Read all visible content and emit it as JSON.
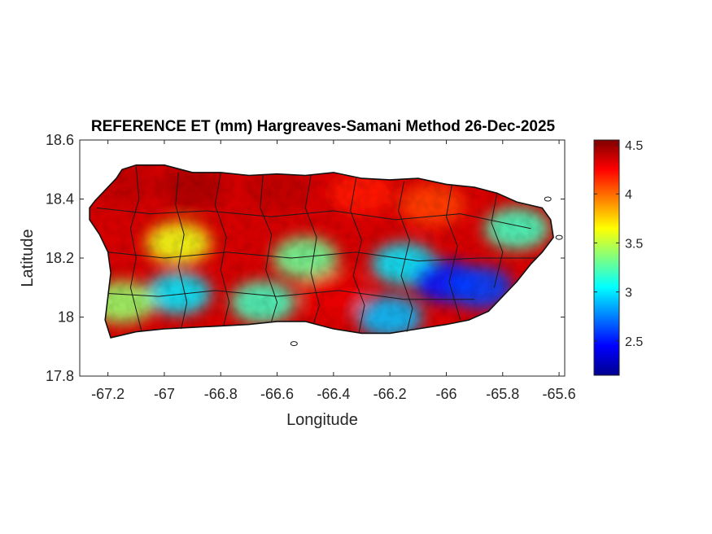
{
  "chart_data": {
    "type": "heatmap",
    "title": "REFERENCE ET (mm) Hargreaves-Samani Method  26-Dec-2025",
    "xlabel": "Longitude",
    "ylabel": "Latitude",
    "xlim": [
      -67.3,
      -65.58
    ],
    "ylim": [
      17.8,
      18.6
    ],
    "xticks": [
      -67.2,
      -67,
      -66.8,
      -66.6,
      -66.4,
      -66.2,
      -66,
      -65.8,
      -65.6
    ],
    "yticks": [
      17.8,
      18,
      18.2,
      18.4,
      18.6
    ],
    "colorbar": {
      "colormap": "jet",
      "range": [
        2.15,
        4.55
      ],
      "ticks": [
        2.5,
        3,
        3.5,
        4,
        4.5
      ]
    },
    "grid": false,
    "regions": [
      {
        "lon": -67.15,
        "lat": 18.45,
        "value": 4.4
      },
      {
        "lon": -66.9,
        "lat": 18.44,
        "value": 4.45
      },
      {
        "lon": -66.6,
        "lat": 18.43,
        "value": 4.4
      },
      {
        "lon": -66.3,
        "lat": 18.42,
        "value": 4.2
      },
      {
        "lon": -66.05,
        "lat": 18.38,
        "value": 4.1
      },
      {
        "lon": -65.75,
        "lat": 18.3,
        "value": 3.2
      },
      {
        "lon": -66.95,
        "lat": 18.25,
        "value": 3.6
      },
      {
        "lon": -66.5,
        "lat": 18.2,
        "value": 3.3
      },
      {
        "lon": -66.15,
        "lat": 18.18,
        "value": 3.0
      },
      {
        "lon": -66.0,
        "lat": 18.12,
        "value": 2.5
      },
      {
        "lon": -65.88,
        "lat": 18.1,
        "value": 2.6
      },
      {
        "lon": -66.95,
        "lat": 18.08,
        "value": 3.0
      },
      {
        "lon": -66.65,
        "lat": 18.05,
        "value": 3.2
      },
      {
        "lon": -66.4,
        "lat": 18.08,
        "value": 4.3
      },
      {
        "lon": -66.2,
        "lat": 18.0,
        "value": 2.9
      },
      {
        "lon": -67.15,
        "lat": 18.05,
        "value": 3.4
      }
    ]
  }
}
